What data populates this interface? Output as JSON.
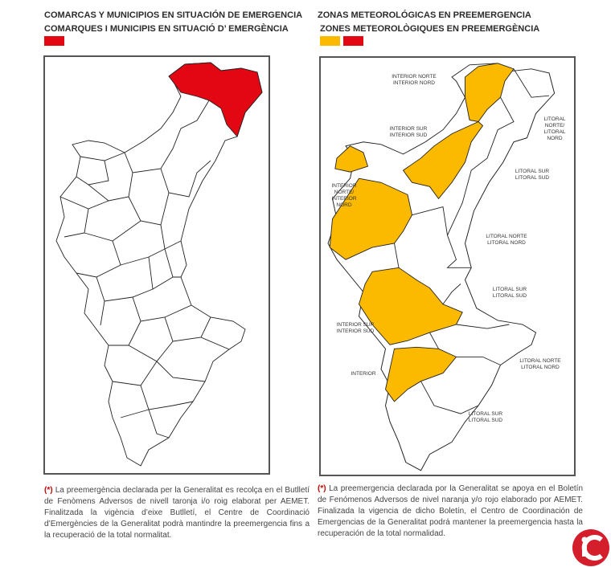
{
  "left": {
    "title": [
      "COMARCAS Y MUNICIPIOS EN SITUACIÓN DE EMERGENCIA",
      "COMARQUES I MUNICIPIS EN SITUACIÓ D’ EMERGÈNCIA"
    ],
    "note_mark": "(*)",
    "note": "La preemergència declarada per la Generalitat es recolça en el Butlletí de Fenòmens Adversos de nivell taronja i/o roig elaborat per AEMET. Finalitzada la vigència d’eixe Butlletí, el Centre de Coordinació d’Emergències de la Generalitat podrà mantindre la preemergencia fins a la recuperació de la total normalitat."
  },
  "right": {
    "title": [
      "ZONAS METEOROLÓGICAS EN PREEMERGENCIA",
      "ZONES METEOROLÒGIQUES EN PREEMERGÈNCIA"
    ],
    "zone_labels": [
      {
        "lines": [
          "INTERIOR NORTE",
          "INTERIOR NORD"
        ]
      },
      {
        "lines": [
          "INTERIOR SUR",
          "INTERIOR SUD"
        ]
      },
      {
        "lines": [
          "LITORAL",
          "NORTE/",
          "LITORAL",
          "NORD"
        ]
      },
      {
        "lines": [
          "LITORAL SUR",
          "LITORAL SUD"
        ]
      },
      {
        "lines": [
          "INTERIOR",
          "NORTE/",
          "INTERIOR",
          "NORD"
        ]
      },
      {
        "lines": [
          "LITORAL NORTE",
          "LITORAL NORD"
        ]
      },
      {
        "lines": [
          "LITORAL SUR",
          "LITORAL SUD"
        ]
      },
      {
        "lines": [
          "INTERIOR SUR",
          "INTERIOR SUD"
        ]
      },
      {
        "lines": [
          "LITORAL NORTE",
          "LITORAL NORD"
        ]
      },
      {
        "lines": [
          "INTERIOR"
        ]
      },
      {
        "lines": [
          "LITORAL SUR",
          "LITORAL SUD"
        ]
      }
    ],
    "note_mark": "(*)",
    "note": "La preemergencia declarada por la Generalitat se apoya en el Boletín de Fenómenos Adversos de nivel naranja y/o rojo elaborado por AEMET. Finalizada la vigencia de dicho Boletín, el Centro de Coordinación de Emergencias de la Generalitat podrá mantener la preemergencia hasta la recuperación de la total normalidad."
  }
}
